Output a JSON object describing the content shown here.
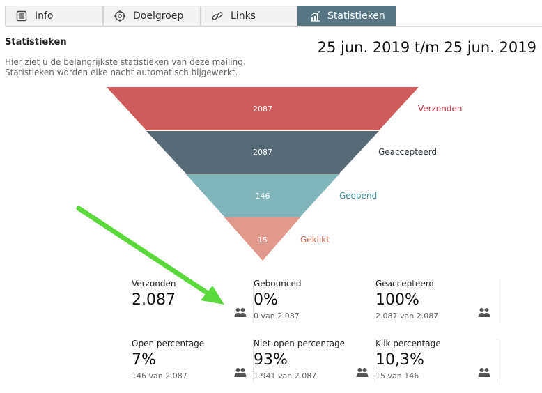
{
  "tabs": [
    {
      "label": "Info",
      "icon": "list-icon"
    },
    {
      "label": "Doelgroep",
      "icon": "target-icon"
    },
    {
      "label": "Links",
      "icon": "link-icon"
    },
    {
      "label": "Statistieken",
      "icon": "bar-chart-icon",
      "active": true
    }
  ],
  "page": {
    "title": "Statistieken",
    "description_line1": "Hier ziet u de belangrijkste statistieken van deze mailing.",
    "description_line2": "Statistieken worden elke nacht automatisch bijgewerkt.",
    "date_range": "25 jun. 2019 t/m 25 jun. 2019"
  },
  "funnel": {
    "stages": [
      {
        "label": "Verzonden",
        "value": "2087",
        "color": "#cf5c5a",
        "label_color": "#b8333a"
      },
      {
        "label": "Geaccepteerd",
        "value": "2087",
        "color": "#586a76",
        "label_color": "#2b3740"
      },
      {
        "label": "Geopend",
        "value": "146",
        "color": "#80b5b9",
        "label_color": "#3f8f96"
      },
      {
        "label": "Geklikt",
        "value": "15",
        "color": "#e0998a",
        "label_color": "#d06a55"
      }
    ]
  },
  "stats": [
    {
      "label": "Verzonden",
      "value": "2.087",
      "sub": ""
    },
    {
      "label": "Gebounced",
      "value": "0%",
      "sub": "0 van 2.087"
    },
    {
      "label": "Geaccepteerd",
      "value": "100%",
      "sub": "2.087 van 2.087"
    },
    {
      "label": "Open percentage",
      "value": "7%",
      "sub": "146 van 2.087"
    },
    {
      "label": "Niet-open percentage",
      "value": "93%",
      "sub": "1.941 van 2.087"
    },
    {
      "label": "Klik percentage",
      "value": "10,3%",
      "sub": "15 van 146"
    }
  ],
  "colors": {
    "accent": "#597684",
    "annotation_arrow": "#5bd83c"
  }
}
